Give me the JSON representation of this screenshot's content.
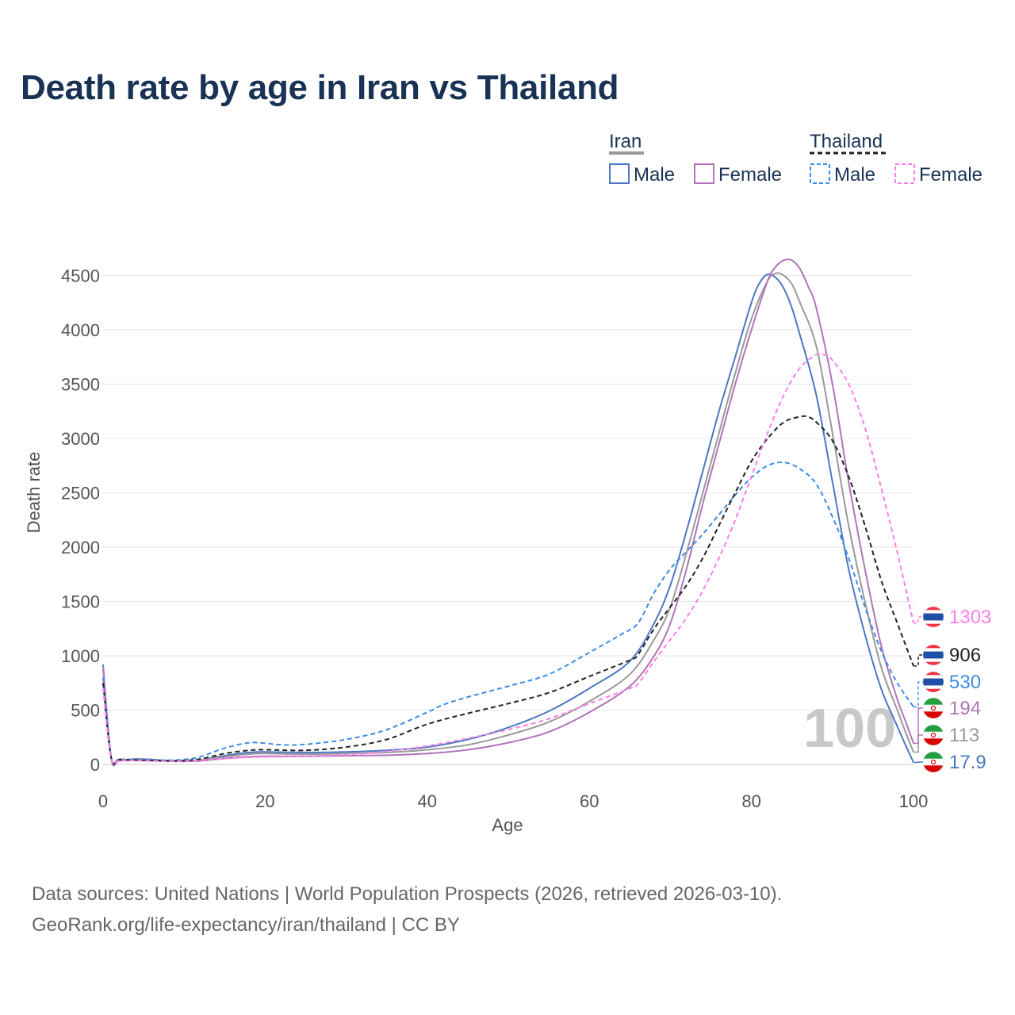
{
  "title": "Death rate by age in Iran vs Thailand",
  "footer": {
    "line1": "Data sources: United Nations | World Population Prospects (2026, retrieved 2026-03-10).",
    "line2": "GeoRank.org/life-expectancy/iran/thailand | CC BY"
  },
  "legend": {
    "groups": [
      {
        "label": "Iran",
        "line_color": "#999999",
        "dashed": false
      },
      {
        "label": "Thailand",
        "line_color": "#222222",
        "dashed": true
      }
    ],
    "items": [
      {
        "label": "Male",
        "color": "#4a78c2",
        "dashed": false
      },
      {
        "label": "Female",
        "color": "#b075b8",
        "dashed": false
      },
      {
        "label": "Male",
        "color": "#3d8ce8",
        "dashed": true
      },
      {
        "label": "Female",
        "color": "#ff7ee8",
        "dashed": true
      }
    ]
  },
  "watermark": "100",
  "chart_data": {
    "type": "line",
    "title": "Death rate by age in Iran vs Thailand",
    "xlabel": "Age",
    "ylabel": "Death rate",
    "xlim": [
      0,
      100
    ],
    "ylim": [
      0,
      4700
    ],
    "xticks": [
      0,
      20,
      40,
      60,
      80,
      100
    ],
    "yticks": [
      0,
      500,
      1000,
      1500,
      2000,
      2500,
      3000,
      3500,
      4000,
      4500
    ],
    "grid": true,
    "series": [
      {
        "name": "Iran Male",
        "color": "#4a78c2",
        "dashed": false,
        "x": [
          0,
          1,
          2,
          4,
          6,
          8,
          10,
          12,
          15,
          18,
          20,
          25,
          30,
          35,
          40,
          45,
          50,
          55,
          60,
          65,
          68,
          70,
          72,
          74,
          76,
          78,
          80,
          81,
          82,
          83,
          84,
          85,
          86,
          88,
          90,
          92,
          94,
          96,
          98,
          99,
          100
        ],
        "y": [
          920,
          60,
          40,
          50,
          45,
          35,
          30,
          40,
          80,
          110,
          115,
          110,
          115,
          130,
          160,
          230,
          340,
          490,
          700,
          950,
          1300,
          1650,
          2150,
          2700,
          3250,
          3750,
          4250,
          4430,
          4510,
          4480,
          4380,
          4200,
          3950,
          3400,
          2600,
          1800,
          1200,
          700,
          350,
          180,
          17.9
        ],
        "end_value": "17.9",
        "end_label_color": "#4a78c2",
        "flag": "iran"
      },
      {
        "name": "Iran Total",
        "color": "#999999",
        "dashed": false,
        "x": [
          0,
          1,
          2,
          4,
          6,
          8,
          10,
          12,
          15,
          18,
          20,
          25,
          30,
          35,
          40,
          45,
          50,
          55,
          60,
          65,
          68,
          70,
          72,
          74,
          76,
          78,
          80,
          82,
          83,
          84,
          85,
          86,
          88,
          90,
          92,
          94,
          96,
          98,
          99,
          100
        ],
        "y": [
          900,
          60,
          40,
          45,
          42,
          35,
          30,
          38,
          70,
          95,
          100,
          95,
          100,
          110,
          135,
          180,
          270,
          390,
          580,
          830,
          1150,
          1450,
          1950,
          2500,
          3050,
          3600,
          4100,
          4450,
          4520,
          4500,
          4420,
          4250,
          3850,
          3050,
          2200,
          1500,
          900,
          500,
          300,
          113
        ],
        "end_value": "113",
        "end_label_color": "#999999",
        "flag": "iran"
      },
      {
        "name": "Iran Female",
        "color": "#b075b8",
        "dashed": false,
        "x": [
          0,
          1,
          2,
          4,
          6,
          8,
          10,
          12,
          15,
          18,
          20,
          25,
          30,
          35,
          40,
          45,
          50,
          55,
          60,
          65,
          68,
          70,
          72,
          74,
          76,
          78,
          80,
          82,
          83,
          84,
          85,
          86,
          87,
          88,
          90,
          92,
          94,
          96,
          98,
          99,
          100
        ],
        "y": [
          880,
          60,
          35,
          40,
          38,
          32,
          28,
          33,
          55,
          70,
          75,
          75,
          80,
          85,
          100,
          135,
          200,
          300,
          480,
          720,
          1000,
          1300,
          1800,
          2400,
          2950,
          3500,
          4000,
          4450,
          4580,
          4640,
          4640,
          4560,
          4400,
          4200,
          3500,
          2600,
          1800,
          1100,
          600,
          400,
          194
        ],
        "end_value": "194",
        "end_label_color": "#b075b8",
        "flag": "iran"
      },
      {
        "name": "Thailand Male",
        "color": "#3d8ce8",
        "dashed": true,
        "x": [
          0,
          1,
          2,
          4,
          6,
          8,
          10,
          12,
          15,
          18,
          20,
          22,
          25,
          30,
          35,
          40,
          42,
          45,
          50,
          55,
          60,
          64,
          66,
          68,
          70,
          72,
          74,
          76,
          78,
          80,
          82,
          84,
          86,
          88,
          90,
          92,
          94,
          96,
          98,
          100
        ],
        "y": [
          800,
          70,
          50,
          45,
          40,
          38,
          45,
          70,
          150,
          200,
          195,
          180,
          185,
          230,
          320,
          480,
          550,
          620,
          720,
          830,
          1030,
          1200,
          1300,
          1580,
          1800,
          1960,
          2120,
          2300,
          2480,
          2640,
          2750,
          2780,
          2720,
          2580,
          2280,
          1900,
          1450,
          1050,
          750,
          530
        ],
        "end_value": "530",
        "end_label_color": "#3d8ce8",
        "flag": "thailand"
      },
      {
        "name": "Thailand Total",
        "color": "#222222",
        "dashed": true,
        "x": [
          0,
          1,
          2,
          4,
          6,
          8,
          10,
          12,
          15,
          18,
          20,
          25,
          30,
          35,
          40,
          45,
          50,
          55,
          60,
          65,
          66,
          68,
          70,
          72,
          74,
          76,
          78,
          80,
          82,
          84,
          86,
          87,
          88,
          90,
          92,
          94,
          96,
          98,
          100
        ],
        "y": [
          750,
          60,
          45,
          40,
          36,
          32,
          35,
          50,
          100,
          130,
          135,
          130,
          160,
          230,
          370,
          470,
          560,
          660,
          810,
          960,
          1010,
          1250,
          1450,
          1650,
          1900,
          2200,
          2500,
          2790,
          3000,
          3150,
          3200,
          3200,
          3150,
          2980,
          2650,
          2200,
          1700,
          1300,
          906
        ],
        "end_value": "906",
        "end_label_color": "#222222",
        "flag": "thailand"
      },
      {
        "name": "Thailand Female",
        "color": "#ff7ee8",
        "dashed": true,
        "x": [
          0,
          1,
          2,
          4,
          6,
          8,
          10,
          12,
          15,
          18,
          20,
          25,
          30,
          35,
          40,
          45,
          50,
          55,
          60,
          65,
          66,
          68,
          70,
          72,
          74,
          76,
          78,
          80,
          82,
          84,
          86,
          88,
          89,
          90,
          92,
          94,
          96,
          98,
          100
        ],
        "y": [
          700,
          50,
          40,
          35,
          32,
          30,
          30,
          38,
          55,
          65,
          70,
          75,
          90,
          120,
          170,
          240,
          320,
          420,
          560,
          700,
          740,
          950,
          1150,
          1350,
          1600,
          1900,
          2250,
          2650,
          3050,
          3400,
          3650,
          3770,
          3770,
          3720,
          3500,
          3100,
          2550,
          1950,
          1303
        ],
        "end_value": "1303",
        "end_label_color": "#ff7ee8",
        "flag": "thailand"
      }
    ]
  }
}
